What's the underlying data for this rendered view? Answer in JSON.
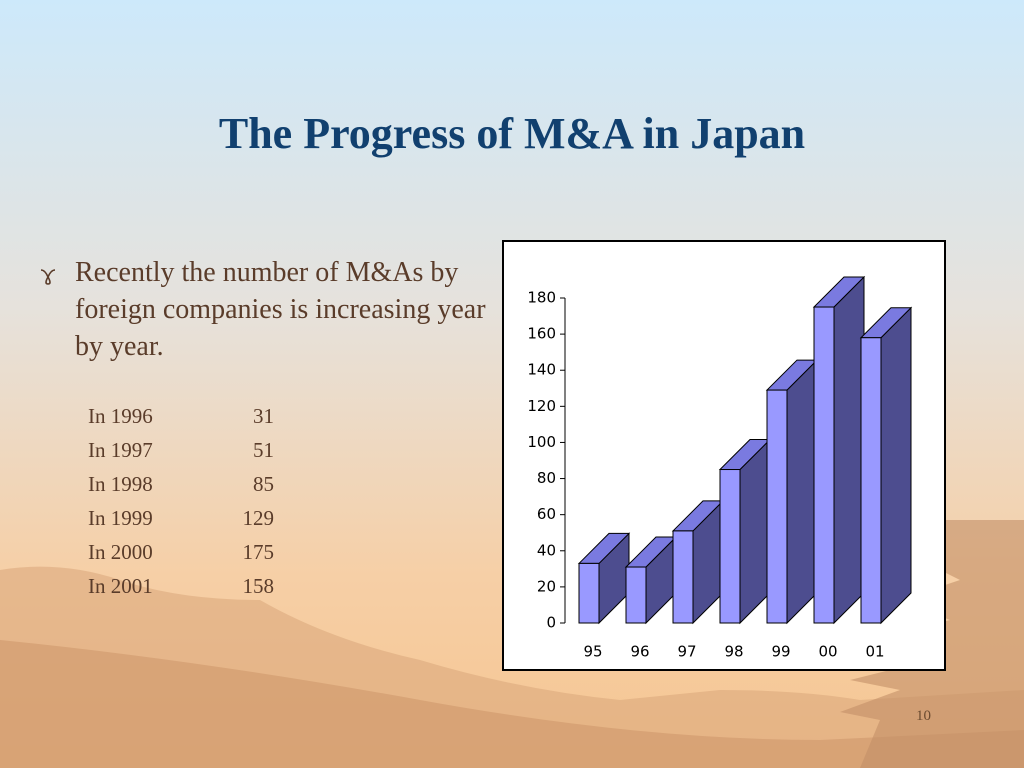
{
  "title": "The Progress of M&A in Japan",
  "bullet": "Recently the number of M&As by foreign  companies is increasing year by year.",
  "table": {
    "rows": [
      [
        "In 1996",
        31
      ],
      [
        "In 1997",
        51
      ],
      [
        "In 1998",
        85
      ],
      [
        "In 1999",
        129
      ],
      [
        "In 2000",
        175
      ],
      [
        "In 2001",
        158
      ]
    ]
  },
  "page_number": "10",
  "chart_data": {
    "type": "bar3d",
    "categories": [
      "95",
      "96",
      "97",
      "98",
      "99",
      "00",
      "01"
    ],
    "values": [
      33,
      31,
      51,
      85,
      129,
      175,
      158
    ],
    "color": "#9999ff",
    "ylim": [
      0,
      180
    ],
    "yticks": [
      0,
      20,
      40,
      60,
      80,
      100,
      120,
      140,
      160,
      180
    ]
  }
}
